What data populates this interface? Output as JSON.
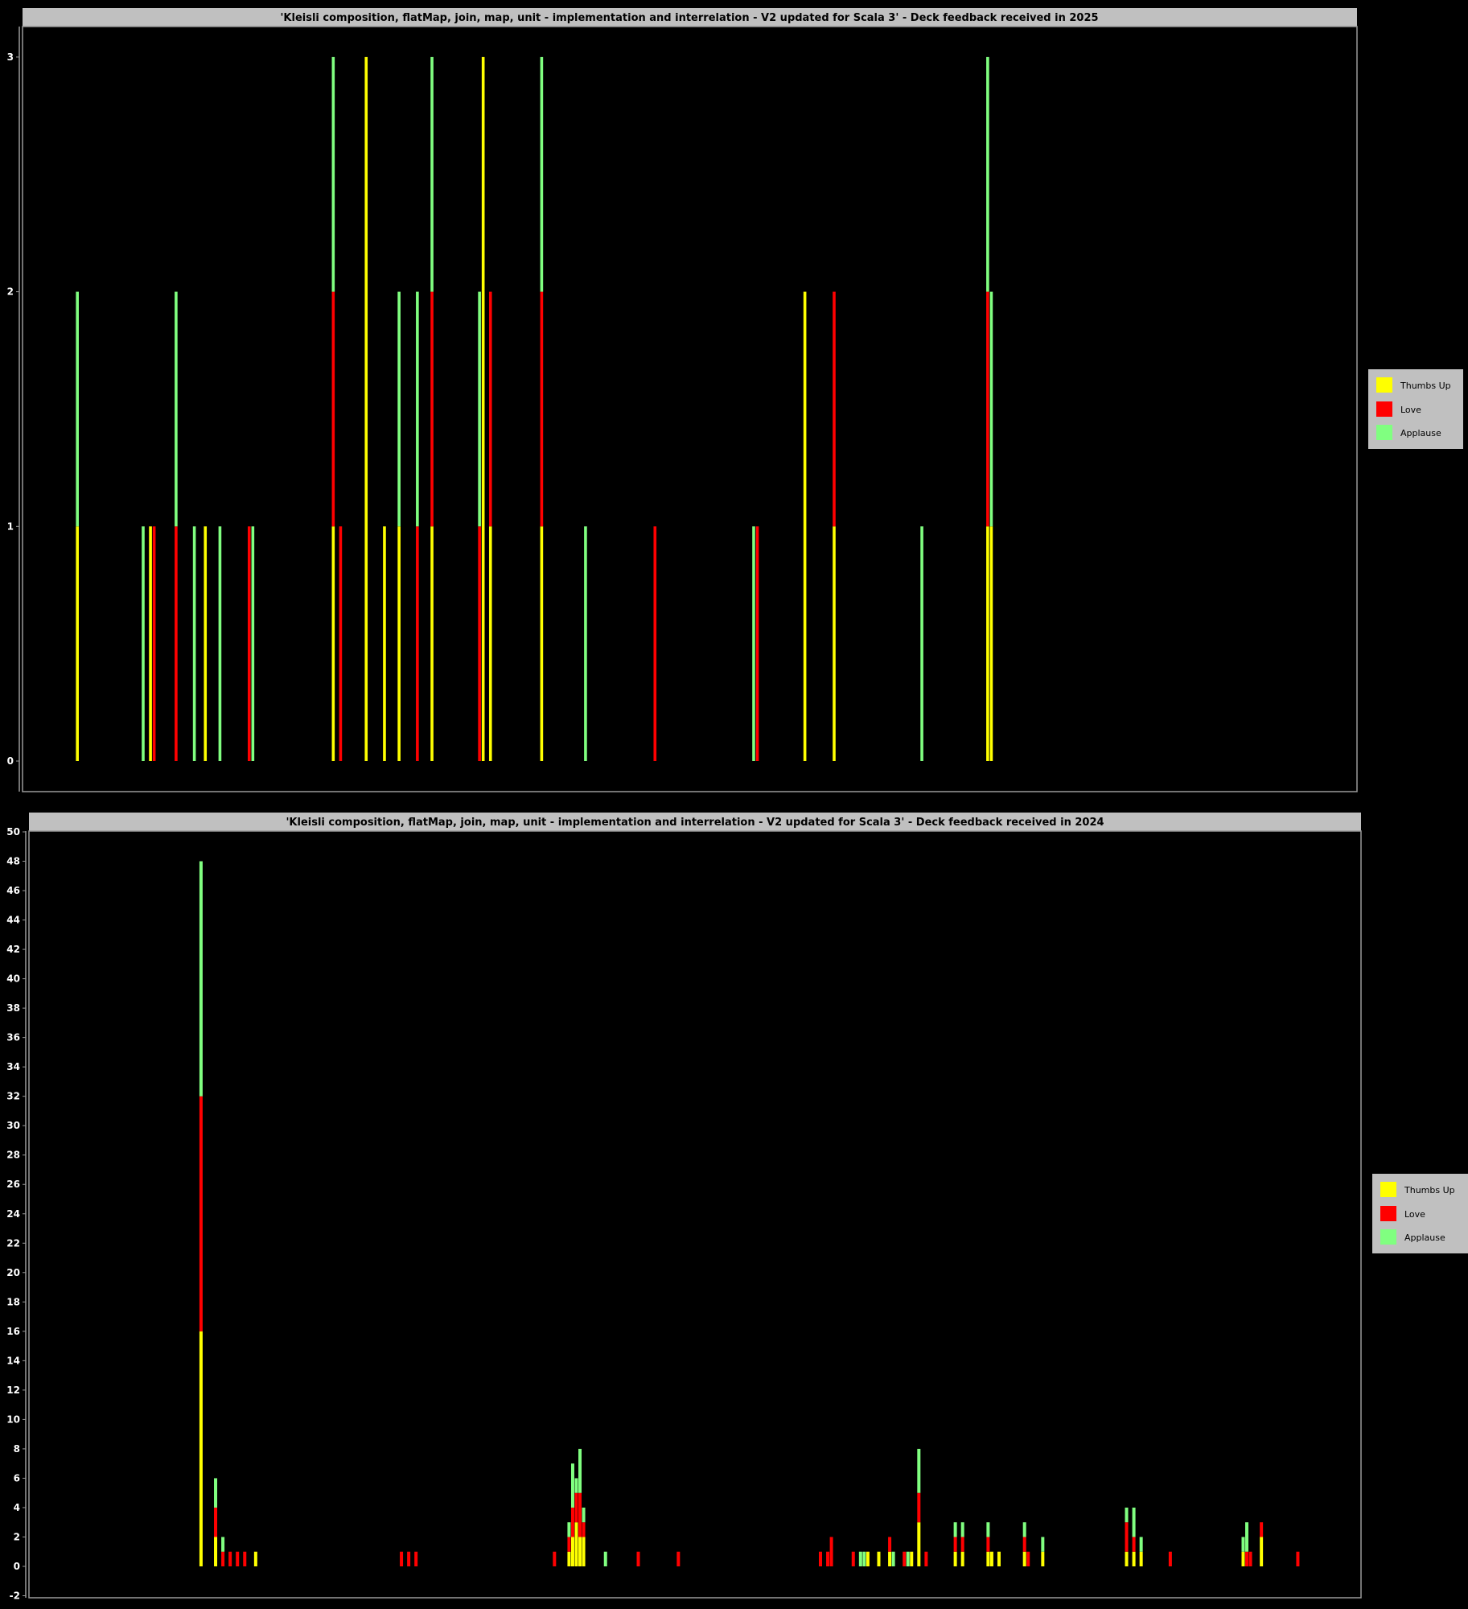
{
  "colors": {
    "thumbs_up": "#ffff00",
    "love": "#ff0000",
    "applause": "#80ff80",
    "background": "#000000",
    "panel": "#c0c0c0"
  },
  "chart_data": [
    {
      "type": "bar",
      "stacked": true,
      "title": "'Kleisli composition, flatMap, join, map, unit - implementation and interrelation - V2 updated for Scala 3' - Deck feedback received in 2025",
      "xlabel": "",
      "ylabel": "",
      "xlim": [
        0,
        365
      ],
      "ylim": [
        0,
        3
      ],
      "yticks": [
        0,
        1,
        2,
        3
      ],
      "grid": false,
      "legend": "right",
      "x": [
        15,
        33,
        35,
        36,
        42,
        47,
        50,
        54,
        62,
        63,
        85,
        87,
        94,
        99,
        103,
        108,
        112,
        125,
        126,
        128,
        142,
        154,
        173,
        200,
        201,
        214,
        222,
        246,
        264,
        265
      ],
      "series": [
        {
          "name": "Thumbs Up",
          "color": "#ffff00",
          "values": [
            1,
            0,
            1,
            0,
            0,
            0,
            1,
            0,
            0,
            0,
            1,
            0,
            3,
            1,
            1,
            0,
            1,
            0,
            3,
            1,
            1,
            0,
            0,
            0,
            0,
            2,
            1,
            0,
            1,
            1
          ]
        },
        {
          "name": "Love",
          "color": "#ff0000",
          "values": [
            0,
            0,
            0,
            1,
            1,
            0,
            0,
            0,
            1,
            0,
            1,
            1,
            0,
            0,
            0,
            1,
            1,
            1,
            0,
            1,
            1,
            0,
            1,
            0,
            1,
            0,
            1,
            0,
            1,
            0
          ]
        },
        {
          "name": "Applause",
          "color": "#80ff80",
          "values": [
            1,
            1,
            0,
            0,
            1,
            1,
            0,
            1,
            0,
            1,
            1,
            0,
            0,
            0,
            1,
            1,
            1,
            1,
            0,
            0,
            1,
            1,
            0,
            1,
            0,
            0,
            0,
            1,
            1,
            1
          ]
        }
      ]
    },
    {
      "type": "bar",
      "stacked": true,
      "title": "'Kleisli composition, flatMap, join, map, unit - implementation and interrelation - V2 updated for Scala 3' - Deck feedback received in 2024",
      "xlabel": "",
      "ylabel": "",
      "xlim": [
        0,
        365
      ],
      "ylim": [
        -2,
        50
      ],
      "yticks": [
        -2,
        0,
        2,
        4,
        6,
        8,
        10,
        12,
        14,
        16,
        18,
        20,
        22,
        24,
        26,
        28,
        30,
        32,
        34,
        36,
        38,
        40,
        42,
        44,
        46,
        48,
        50
      ],
      "grid": false,
      "legend": "right",
      "x": [
        47,
        51,
        53,
        55,
        57,
        59,
        62,
        102,
        104,
        106,
        144,
        148,
        149,
        150,
        151,
        152,
        158,
        167,
        178,
        217,
        219,
        220,
        226,
        228,
        229,
        230,
        233,
        236,
        237,
        240,
        241,
        242,
        244,
        246,
        254,
        256,
        263,
        264,
        266,
        273,
        274,
        278,
        301,
        303,
        305,
        313,
        333,
        334,
        335,
        338,
        348
      ],
      "series": [
        {
          "name": "Thumbs Up",
          "color": "#ffff00",
          "values": [
            16,
            2,
            0,
            0,
            0,
            0,
            1,
            0,
            0,
            0,
            0,
            1,
            2,
            3,
            2,
            2,
            0,
            0,
            0,
            0,
            0,
            0,
            0,
            0,
            0,
            1,
            1,
            1,
            0,
            0,
            0,
            1,
            3,
            0,
            1,
            1,
            1,
            1,
            1,
            1,
            0,
            1,
            1,
            1,
            1,
            0,
            1,
            0,
            0,
            2,
            0
          ]
        },
        {
          "name": "Love",
          "color": "#ff0000",
          "values": [
            16,
            2,
            1,
            1,
            1,
            1,
            0,
            1,
            1,
            1,
            1,
            1,
            2,
            2,
            3,
            1,
            0,
            1,
            1,
            1,
            1,
            2,
            1,
            0,
            0,
            0,
            0,
            1,
            0,
            1,
            0,
            0,
            2,
            1,
            1,
            1,
            1,
            0,
            0,
            1,
            1,
            0,
            2,
            1,
            0,
            1,
            0,
            1,
            1,
            1,
            1
          ]
        },
        {
          "name": "Applause",
          "color": "#80ff80",
          "values": [
            16,
            2,
            1,
            0,
            0,
            0,
            0,
            0,
            0,
            0,
            0,
            1,
            3,
            1,
            3,
            1,
            1,
            0,
            0,
            0,
            0,
            0,
            0,
            1,
            1,
            0,
            0,
            0,
            1,
            0,
            1,
            0,
            3,
            0,
            1,
            1,
            1,
            0,
            0,
            1,
            0,
            1,
            1,
            2,
            1,
            0,
            1,
            2,
            0,
            0,
            0
          ]
        }
      ]
    }
  ]
}
